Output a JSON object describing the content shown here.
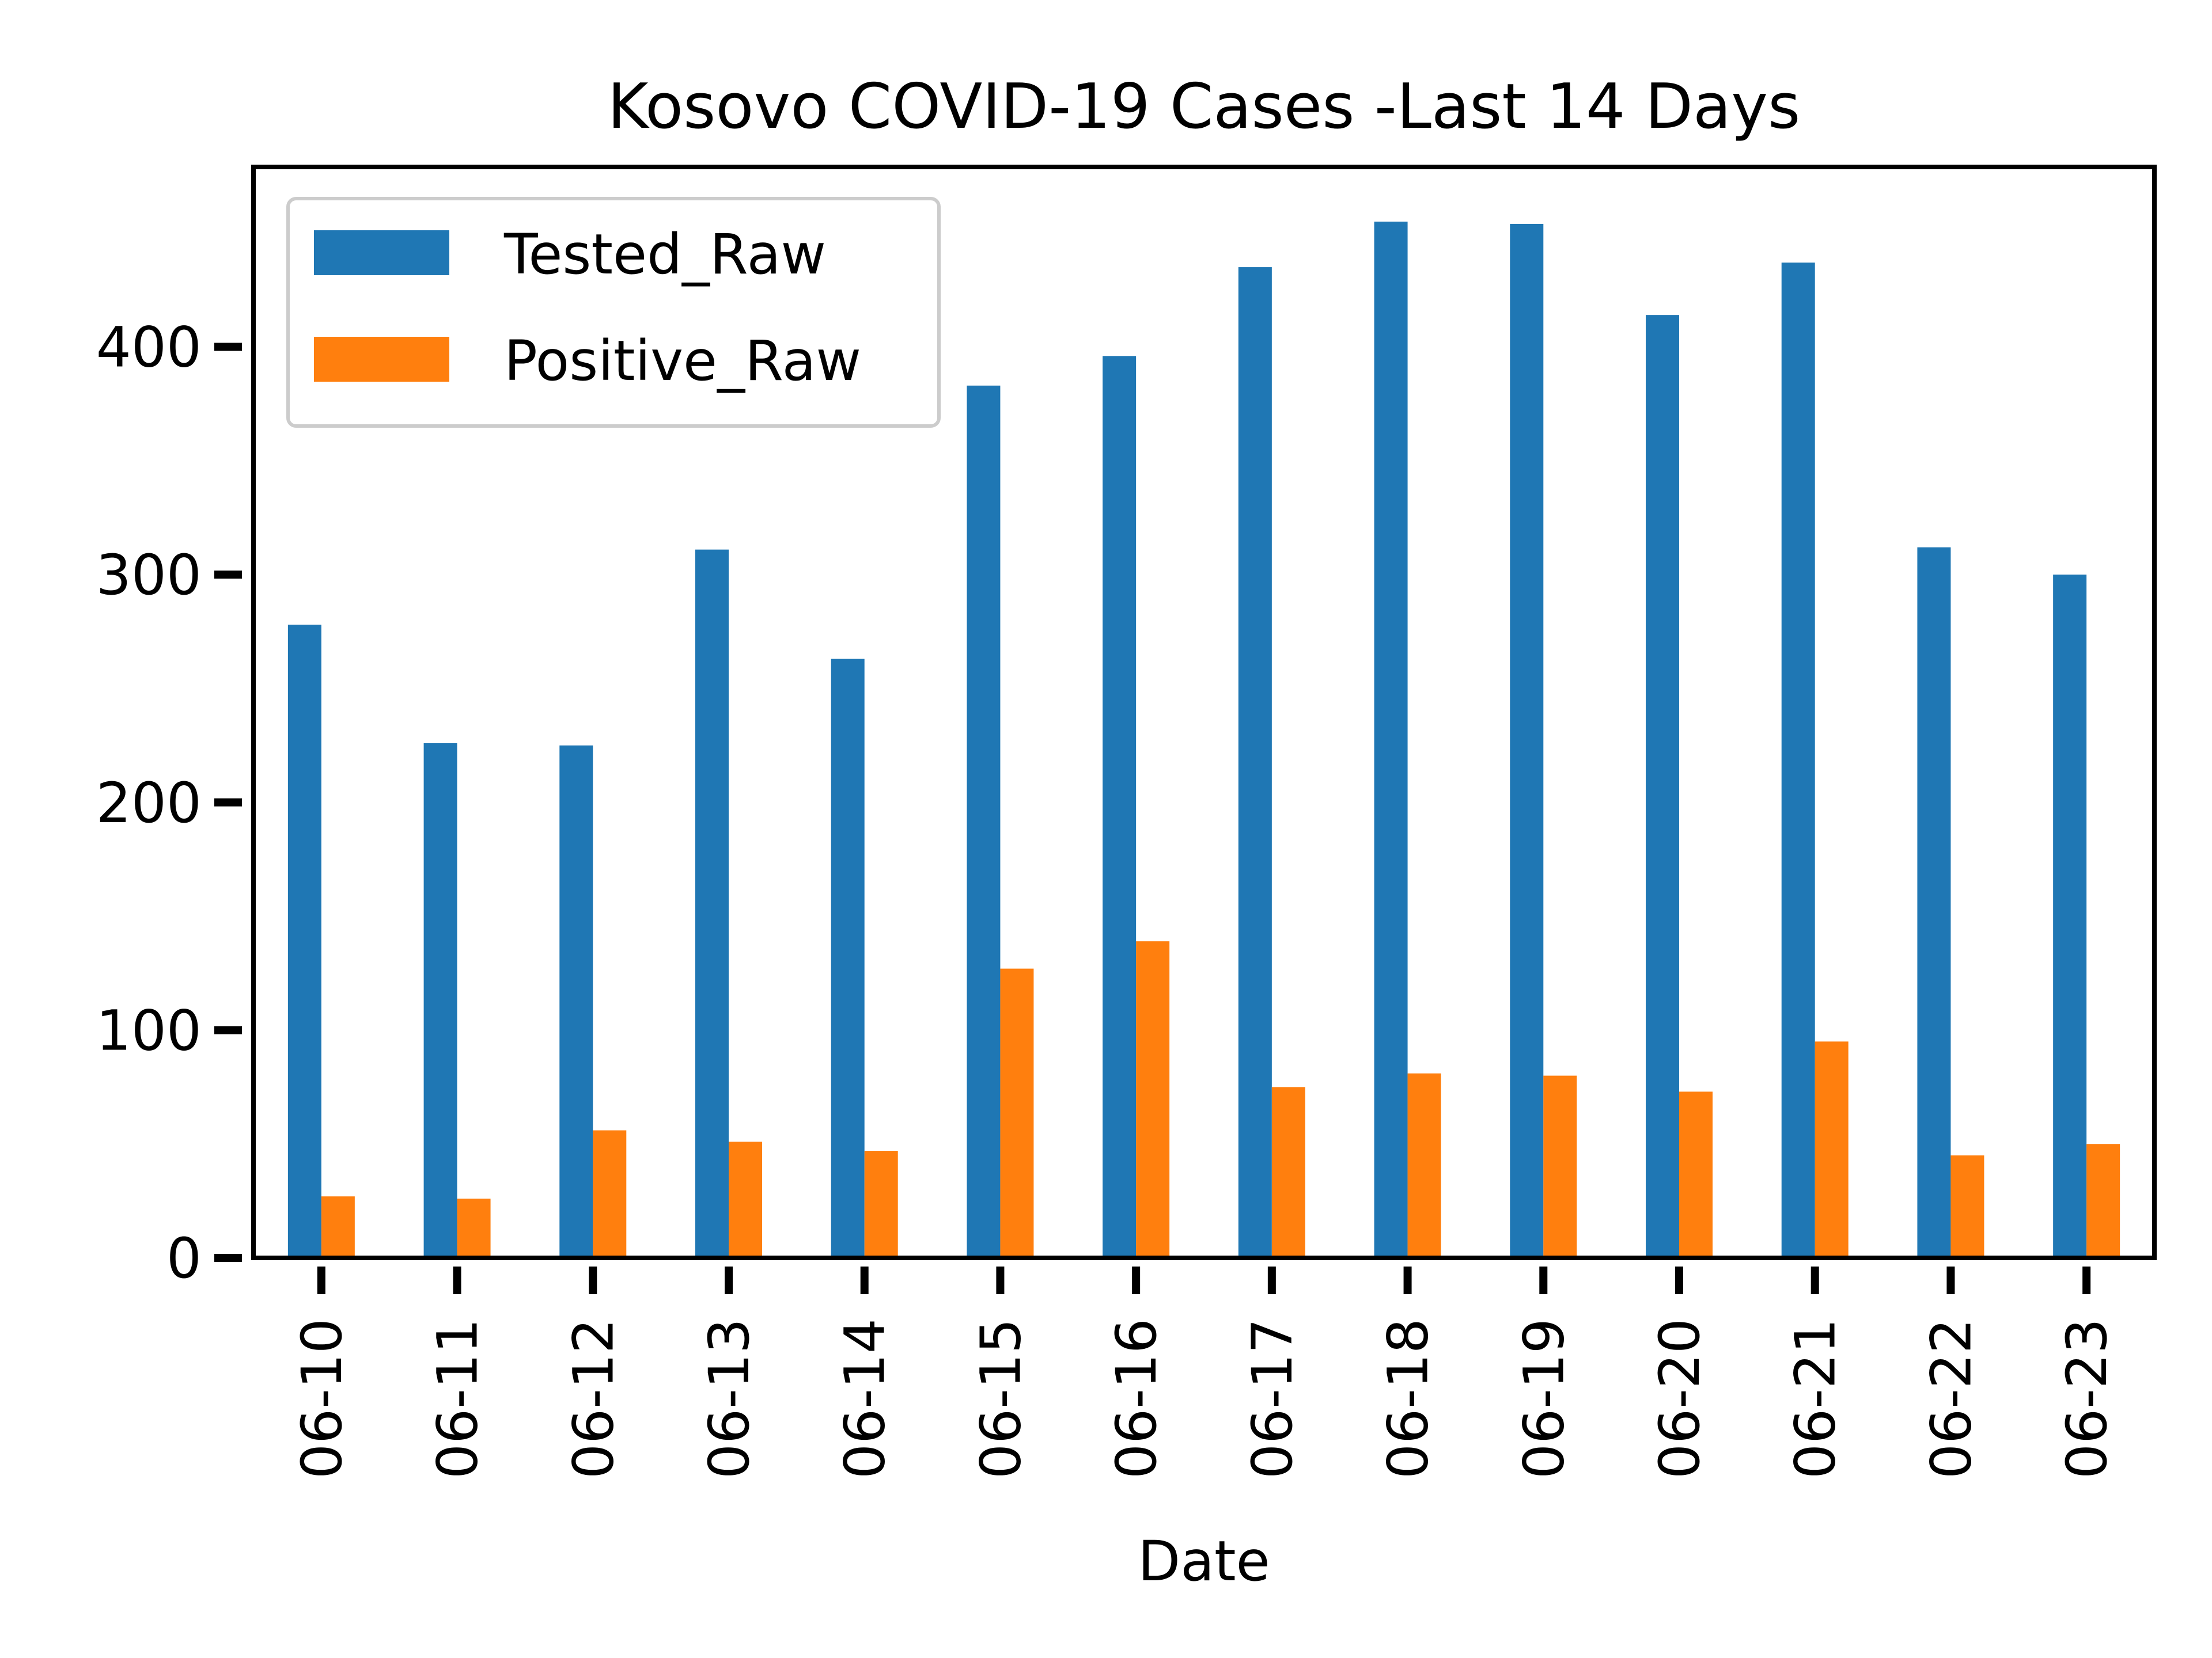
{
  "chart_data": {
    "type": "bar",
    "title": "Kosovo COVID-19 Cases -Last 14 Days",
    "xlabel": "Date",
    "ylabel": "",
    "categories": [
      "06-10",
      "06-11",
      "06-12",
      "06-13",
      "06-14",
      "06-15",
      "06-16",
      "06-17",
      "06-18",
      "06-19",
      "06-20",
      "06-21",
      "06-22",
      "06-23"
    ],
    "series": [
      {
        "name": "Tested_Raw",
        "color": "#1f77b4",
        "values": [
          278,
          226,
          225,
          311,
          263,
          383,
          396,
          435,
          455,
          454,
          414,
          437,
          312,
          300
        ]
      },
      {
        "name": "Positive_Raw",
        "color": "#ff7f0e",
        "values": [
          27,
          26,
          56,
          51,
          47,
          127,
          139,
          75,
          81,
          80,
          73,
          95,
          45,
          50
        ]
      }
    ],
    "ylim": [
      0,
      479
    ],
    "yticks": [
      0,
      100,
      200,
      300,
      400
    ],
    "grid": false,
    "legend_position": "top-left"
  }
}
